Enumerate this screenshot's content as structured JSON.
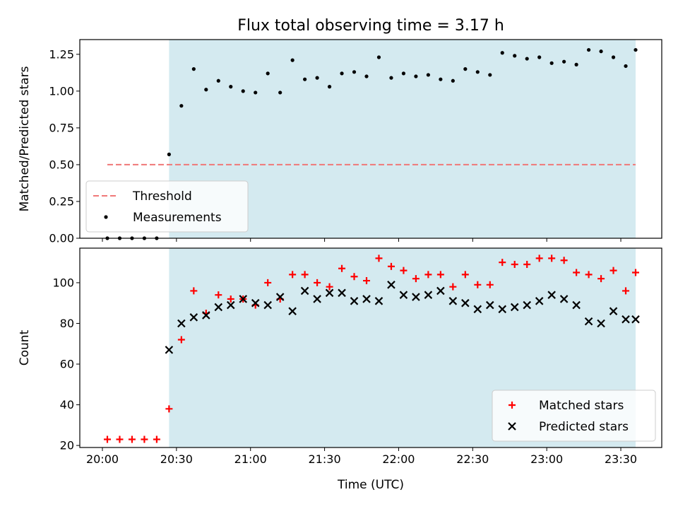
{
  "figure": {
    "title": "Flux total observing time = 3.17 h",
    "xlabel": "Time (UTC)"
  },
  "chart_data": [
    {
      "type": "scatter",
      "panel": "top",
      "ylabel": "Matched/Predicted stars",
      "xlim": [
        "20:00",
        "23:36"
      ],
      "ylim": [
        0,
        1.35
      ],
      "x_ticks": [
        "20:00",
        "20:30",
        "21:00",
        "21:30",
        "22:00",
        "22:30",
        "23:00",
        "23:30"
      ],
      "y_ticks": [
        "0.00",
        "0.25",
        "0.50",
        "0.75",
        "1.00",
        "1.25"
      ],
      "shaded_span": {
        "from": "20:27",
        "to": "23:36",
        "color": "#d4eaf0"
      },
      "legend_position": "lower-left",
      "threshold": {
        "name": "Threshold",
        "value": 0.5,
        "from": "20:02",
        "to": "23:36",
        "color": "#f07878",
        "style": "dashed"
      },
      "series": [
        {
          "name": "Measurements",
          "color": "#000000",
          "marker": "dot",
          "points": [
            [
              "20:02",
              0.0
            ],
            [
              "20:07",
              0.0
            ],
            [
              "20:12",
              0.0
            ],
            [
              "20:17",
              0.0
            ],
            [
              "20:22",
              0.0
            ],
            [
              "20:27",
              0.57
            ],
            [
              "20:32",
              0.9
            ],
            [
              "20:37",
              1.15
            ],
            [
              "20:42",
              1.01
            ],
            [
              "20:47",
              1.07
            ],
            [
              "20:52",
              1.03
            ],
            [
              "20:57",
              1.0
            ],
            [
              "21:02",
              0.99
            ],
            [
              "21:07",
              1.12
            ],
            [
              "21:12",
              0.99
            ],
            [
              "21:17",
              1.21
            ],
            [
              "21:22",
              1.08
            ],
            [
              "21:27",
              1.09
            ],
            [
              "21:32",
              1.03
            ],
            [
              "21:37",
              1.12
            ],
            [
              "21:42",
              1.13
            ],
            [
              "21:47",
              1.1
            ],
            [
              "21:52",
              1.23
            ],
            [
              "21:57",
              1.09
            ],
            [
              "22:02",
              1.12
            ],
            [
              "22:07",
              1.1
            ],
            [
              "22:12",
              1.11
            ],
            [
              "22:17",
              1.08
            ],
            [
              "22:22",
              1.07
            ],
            [
              "22:27",
              1.15
            ],
            [
              "22:32",
              1.13
            ],
            [
              "22:37",
              1.11
            ],
            [
              "22:42",
              1.26
            ],
            [
              "22:47",
              1.24
            ],
            [
              "22:52",
              1.22
            ],
            [
              "22:57",
              1.23
            ],
            [
              "23:02",
              1.19
            ],
            [
              "23:07",
              1.2
            ],
            [
              "23:12",
              1.18
            ],
            [
              "23:17",
              1.28
            ],
            [
              "23:22",
              1.27
            ],
            [
              "23:27",
              1.23
            ],
            [
              "23:32",
              1.17
            ],
            [
              "23:36",
              1.28
            ]
          ]
        }
      ]
    },
    {
      "type": "scatter",
      "panel": "bottom",
      "xlabel": "Time (UTC)",
      "ylabel": "Count",
      "xlim": [
        "20:00",
        "23:36"
      ],
      "ylim": [
        19,
        117
      ],
      "x_ticks": [
        "20:00",
        "20:30",
        "21:00",
        "21:30",
        "22:00",
        "22:30",
        "23:00",
        "23:30"
      ],
      "y_ticks": [
        "20",
        "40",
        "60",
        "80",
        "100"
      ],
      "shaded_span": {
        "from": "20:27",
        "to": "23:36",
        "color": "#d4eaf0"
      },
      "legend_position": "lower-right",
      "series": [
        {
          "name": "Matched stars",
          "color": "#ff0000",
          "marker": "plus",
          "points": [
            [
              "20:02",
              23
            ],
            [
              "20:07",
              23
            ],
            [
              "20:12",
              23
            ],
            [
              "20:17",
              23
            ],
            [
              "20:22",
              23
            ],
            [
              "20:27",
              38
            ],
            [
              "20:32",
              72
            ],
            [
              "20:37",
              96
            ],
            [
              "20:42",
              85
            ],
            [
              "20:47",
              94
            ],
            [
              "20:52",
              92
            ],
            [
              "20:57",
              92
            ],
            [
              "21:02",
              89
            ],
            [
              "21:07",
              100
            ],
            [
              "21:12",
              92
            ],
            [
              "21:17",
              104
            ],
            [
              "21:22",
              104
            ],
            [
              "21:27",
              100
            ],
            [
              "21:32",
              98
            ],
            [
              "21:37",
              107
            ],
            [
              "21:42",
              103
            ],
            [
              "21:47",
              101
            ],
            [
              "21:52",
              112
            ],
            [
              "21:57",
              108
            ],
            [
              "22:02",
              106
            ],
            [
              "22:07",
              102
            ],
            [
              "22:12",
              104
            ],
            [
              "22:17",
              104
            ],
            [
              "22:22",
              98
            ],
            [
              "22:27",
              104
            ],
            [
              "22:32",
              99
            ],
            [
              "22:37",
              99
            ],
            [
              "22:42",
              110
            ],
            [
              "22:47",
              109
            ],
            [
              "22:52",
              109
            ],
            [
              "22:57",
              112
            ],
            [
              "23:02",
              112
            ],
            [
              "23:07",
              111
            ],
            [
              "23:12",
              105
            ],
            [
              "23:17",
              104
            ],
            [
              "23:22",
              102
            ],
            [
              "23:27",
              106
            ],
            [
              "23:32",
              96
            ],
            [
              "23:36",
              105
            ]
          ]
        },
        {
          "name": "Predicted stars",
          "color": "#000000",
          "marker": "x",
          "points": [
            [
              "20:27",
              67
            ],
            [
              "20:32",
              80
            ],
            [
              "20:37",
              83
            ],
            [
              "20:42",
              84
            ],
            [
              "20:47",
              88
            ],
            [
              "20:52",
              89
            ],
            [
              "20:57",
              92
            ],
            [
              "21:02",
              90
            ],
            [
              "21:07",
              89
            ],
            [
              "21:12",
              93
            ],
            [
              "21:17",
              86
            ],
            [
              "21:22",
              96
            ],
            [
              "21:27",
              92
            ],
            [
              "21:32",
              95
            ],
            [
              "21:37",
              95
            ],
            [
              "21:42",
              91
            ],
            [
              "21:47",
              92
            ],
            [
              "21:52",
              91
            ],
            [
              "21:57",
              99
            ],
            [
              "22:02",
              94
            ],
            [
              "22:07",
              93
            ],
            [
              "22:12",
              94
            ],
            [
              "22:17",
              96
            ],
            [
              "22:22",
              91
            ],
            [
              "22:27",
              90
            ],
            [
              "22:32",
              87
            ],
            [
              "22:37",
              89
            ],
            [
              "22:42",
              87
            ],
            [
              "22:47",
              88
            ],
            [
              "22:52",
              89
            ],
            [
              "22:57",
              91
            ],
            [
              "23:02",
              94
            ],
            [
              "23:07",
              92
            ],
            [
              "23:12",
              89
            ],
            [
              "23:17",
              81
            ],
            [
              "23:22",
              80
            ],
            [
              "23:27",
              86
            ],
            [
              "23:32",
              82
            ],
            [
              "23:36",
              82
            ]
          ]
        }
      ]
    }
  ]
}
